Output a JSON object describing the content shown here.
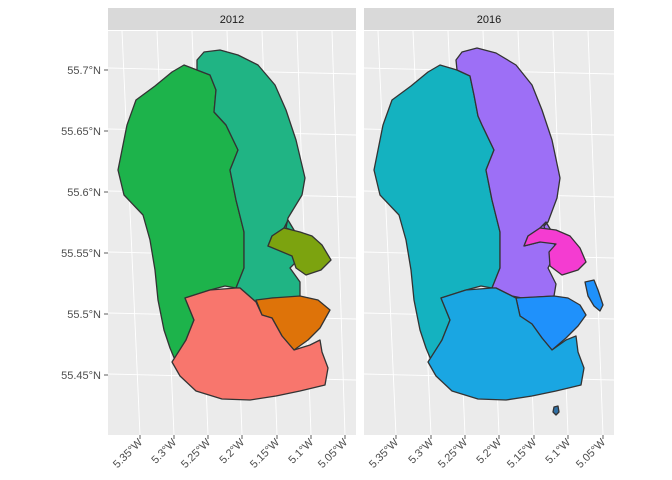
{
  "map": {
    "facets": [
      {
        "label": "2012"
      },
      {
        "label": "2016"
      }
    ],
    "y_axis_labels": [
      "55.7°N",
      "55.65°N",
      "55.6°N",
      "55.55°N",
      "55.5°N",
      "55.45°N"
    ],
    "x_axis_labels": [
      "5.35°W",
      "5.3°W",
      "5.25°W",
      "5.2°W",
      "5.15°W",
      "5.1°W",
      "5.05°W"
    ],
    "colors": {
      "panel_background": "#ebebeb",
      "strip_background": "#d9d9d9",
      "gridlines": "#ffffff",
      "outline": "#333333",
      "2012_west": "#1db34b",
      "2012_north_east": "#20b484",
      "2012_south": "#f8766d",
      "2012_east_olive": "#7ca30f",
      "2012_east_orange": "#de7309",
      "2016_west": "#14b2c0",
      "2016_north_east": "#9d6ff6",
      "2016_south": "#1aa6e2",
      "2016_east_magenta": "#f43cd1",
      "2016_south_east": "#1f91fb",
      "2016_islet": "#2f6fa4"
    }
  }
}
